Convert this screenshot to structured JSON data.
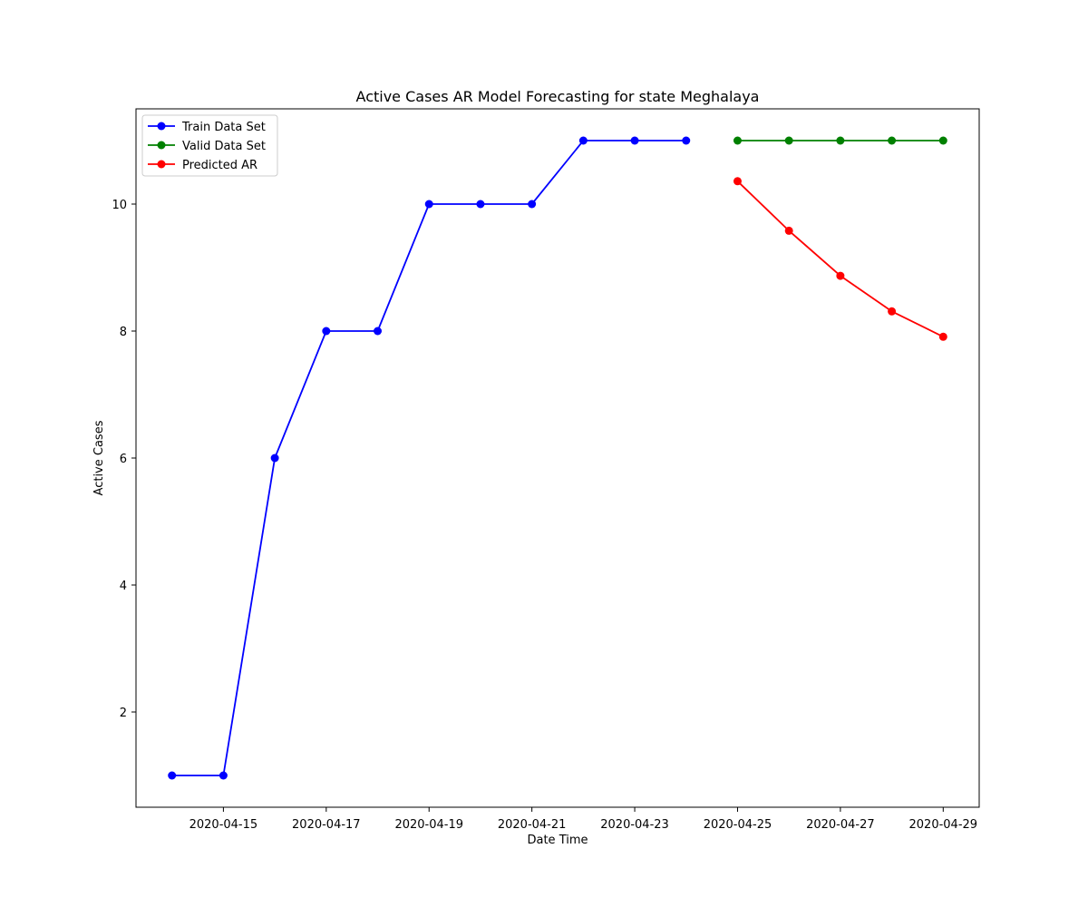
{
  "chart_data": {
    "type": "line",
    "title": "Active Cases AR Model Forecasting for state Meghalaya",
    "xlabel": "Date Time",
    "ylabel": "Active Cases",
    "x_range": [
      "2020-04-13T07:12",
      "2020-04-29T16:48"
    ],
    "ylim": [
      0.5,
      11.5
    ],
    "x_ticks": [
      "2020-04-15",
      "2020-04-17",
      "2020-04-19",
      "2020-04-21",
      "2020-04-23",
      "2020-04-25",
      "2020-04-27",
      "2020-04-29"
    ],
    "y_ticks": [
      2,
      4,
      6,
      8,
      10
    ],
    "grid": false,
    "legend_position": "top-left",
    "series": [
      {
        "name": "Train Data Set",
        "color": "#0000ff",
        "x": [
          "2020-04-14",
          "2020-04-15",
          "2020-04-16",
          "2020-04-17",
          "2020-04-18",
          "2020-04-19",
          "2020-04-20",
          "2020-04-21",
          "2020-04-22",
          "2020-04-23",
          "2020-04-24"
        ],
        "values": [
          1,
          1,
          6,
          8,
          8,
          10,
          10,
          10,
          11,
          11,
          11
        ]
      },
      {
        "name": "Valid Data Set",
        "color": "#008000",
        "x": [
          "2020-04-25",
          "2020-04-26",
          "2020-04-27",
          "2020-04-28",
          "2020-04-29"
        ],
        "values": [
          11,
          11,
          11,
          11,
          11
        ]
      },
      {
        "name": "Predicted AR",
        "color": "#ff0000",
        "x": [
          "2020-04-25",
          "2020-04-26",
          "2020-04-27",
          "2020-04-28",
          "2020-04-29"
        ],
        "values": [
          10.36,
          9.58,
          8.87,
          8.31,
          7.91
        ]
      }
    ]
  }
}
